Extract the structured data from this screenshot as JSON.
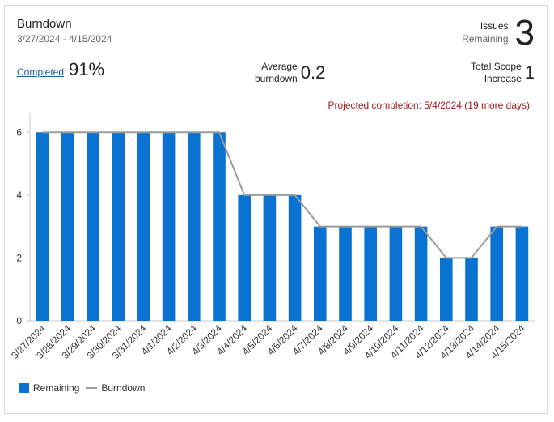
{
  "header": {
    "title": "Burndown",
    "date_range": "3/27/2024 - 4/15/2024",
    "issues_label_1": "Issues",
    "issues_label_2": "Remaining",
    "issues_value": "3"
  },
  "metrics": {
    "completed_label": "Completed",
    "completed_value": "91%",
    "avg_label_1": "Average",
    "avg_label_2": "burndown",
    "avg_value": "0.2",
    "scope_label_1": "Total Scope",
    "scope_label_2": "Increase",
    "scope_value": "1"
  },
  "projected_completion": "Projected completion: 5/4/2024 (19 more days)",
  "colors": {
    "bar": "#0a72d0",
    "line": "#9b9b9b",
    "projected": "#a0191e"
  },
  "chart_data": {
    "type": "bar",
    "categories": [
      "3/27/2024",
      "3/28/2024",
      "3/29/2024",
      "3/30/2024",
      "3/31/2024",
      "4/1/2024",
      "4/2/2024",
      "4/3/2024",
      "4/4/2024",
      "4/5/2024",
      "4/6/2024",
      "4/7/2024",
      "4/8/2024",
      "4/9/2024",
      "4/10/2024",
      "4/11/2024",
      "4/12/2024",
      "4/13/2024",
      "4/14/2024",
      "4/15/2024"
    ],
    "series": [
      {
        "name": "Remaining",
        "kind": "bar",
        "values": [
          6,
          6,
          6,
          6,
          6,
          6,
          6,
          6,
          4,
          4,
          4,
          3,
          3,
          3,
          3,
          3,
          2,
          2,
          3,
          3
        ]
      },
      {
        "name": "Burndown",
        "kind": "line",
        "values": [
          6,
          6,
          6,
          6,
          6,
          6,
          6,
          6,
          4,
          4,
          4,
          3,
          3,
          3,
          3,
          3,
          2,
          2,
          3,
          3
        ]
      }
    ],
    "yticks": [
      0,
      2,
      4,
      6
    ],
    "ylim": [
      0,
      6.6
    ],
    "grid": false,
    "legend": "bottom-left"
  }
}
